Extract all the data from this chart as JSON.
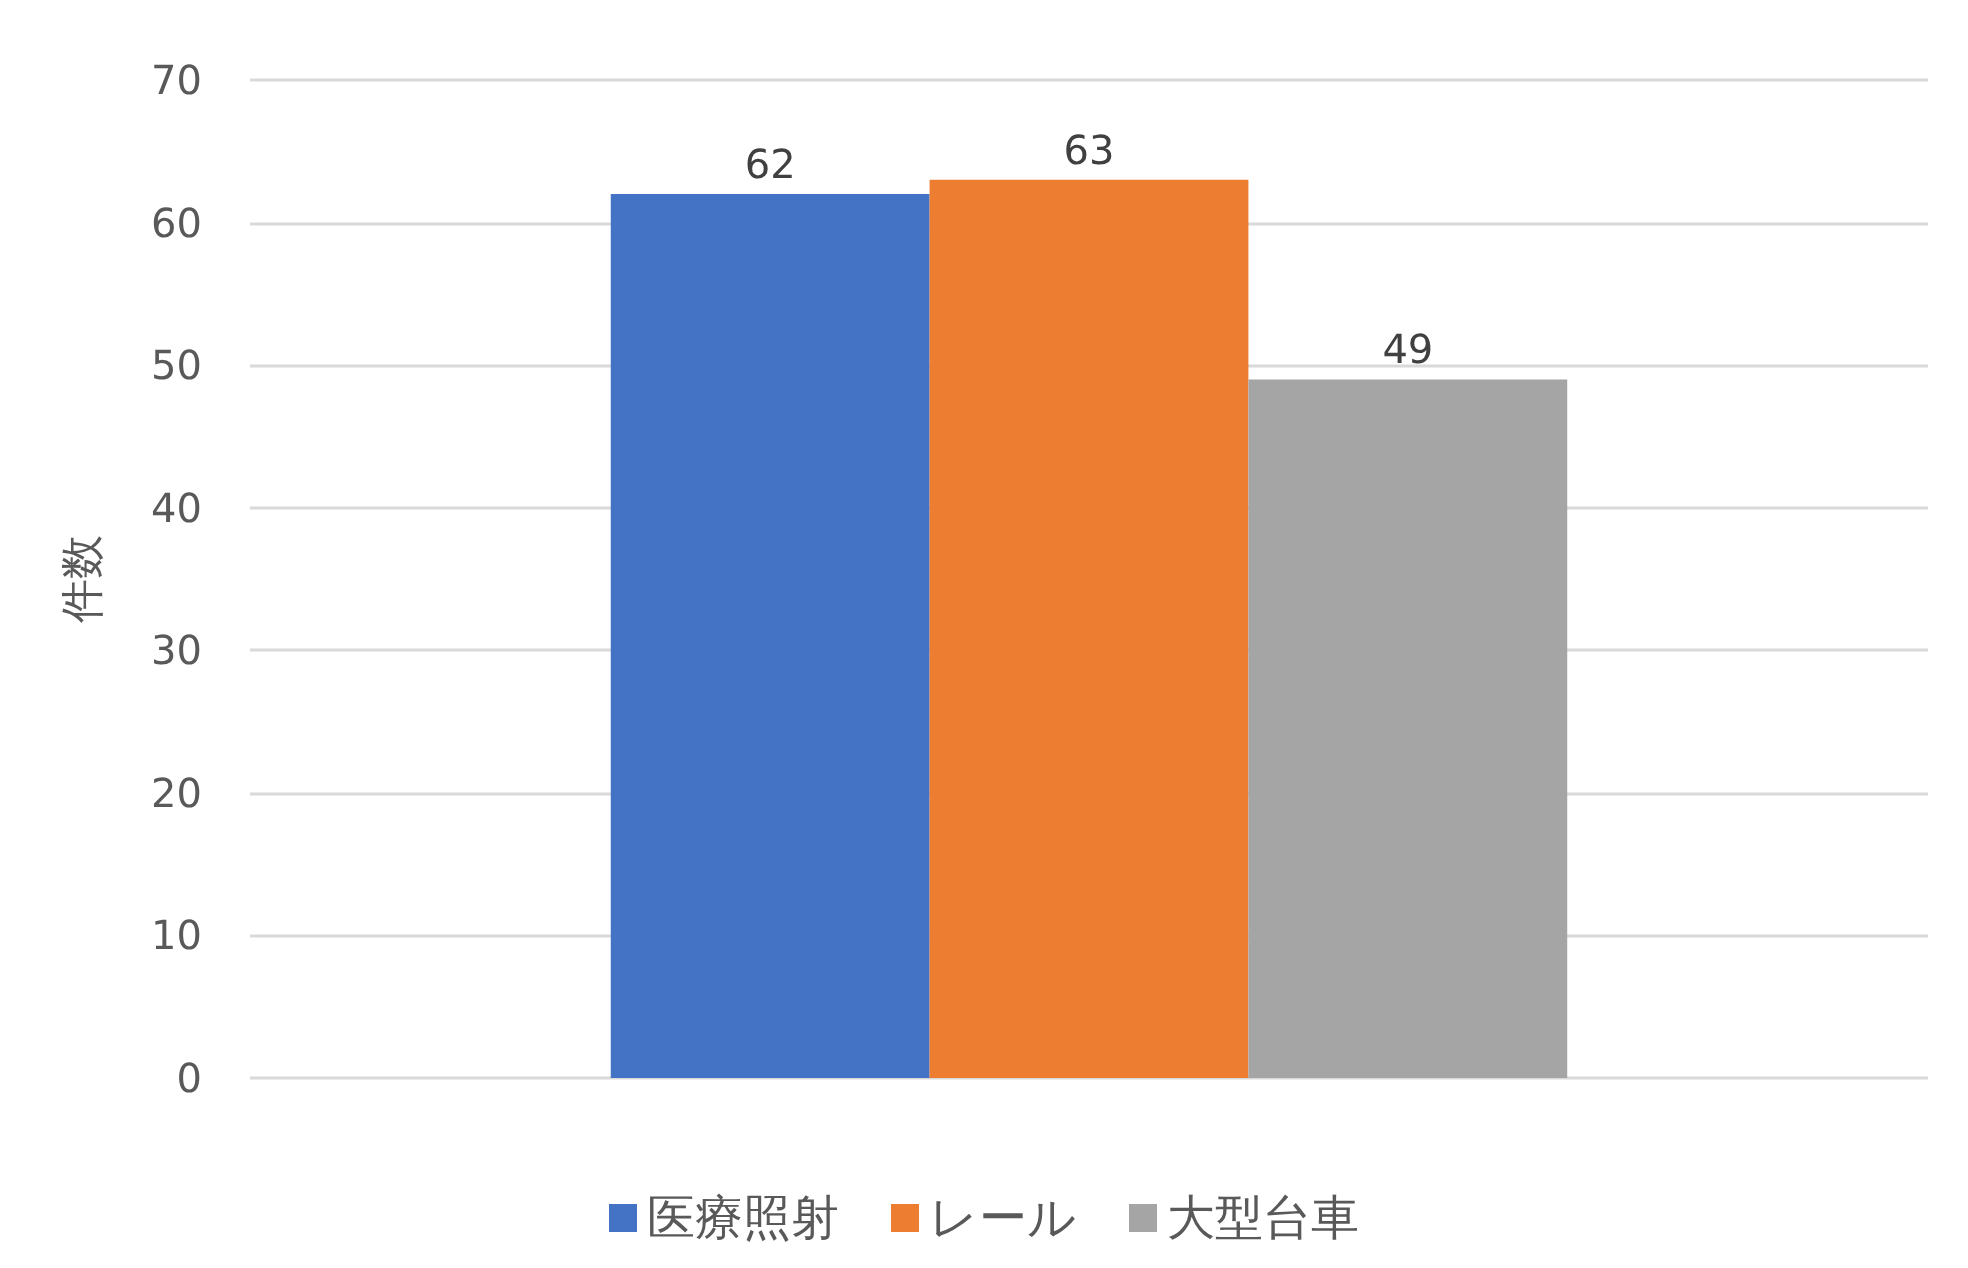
{
  "chart_data": {
    "type": "bar",
    "ylabel": "件数",
    "categories": [
      null
    ],
    "series": [
      {
        "name": "医療照射",
        "color": "#4472c4",
        "values": [
          62
        ]
      },
      {
        "name": "レール",
        "color": "#ed7d31",
        "values": [
          63
        ]
      },
      {
        "name": "大型台車",
        "color": "#a5a5a5",
        "values": [
          49
        ]
      }
    ],
    "ylim": [
      0,
      70
    ],
    "yticks": [
      0,
      10,
      20,
      30,
      40,
      50,
      60,
      70
    ],
    "grid": "y",
    "legend": "bottom",
    "data_labels": true
  }
}
